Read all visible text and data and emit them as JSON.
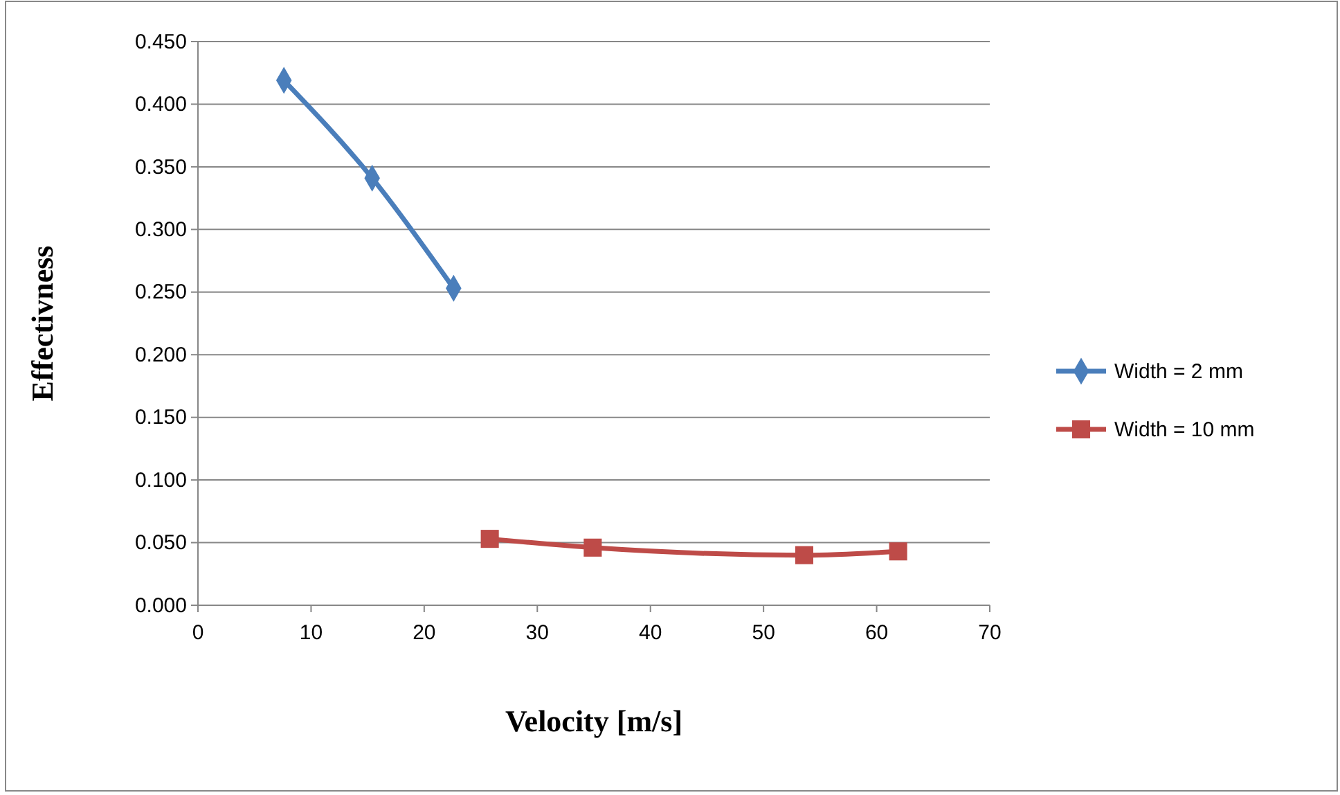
{
  "chart_data": {
    "type": "line",
    "xlabel": "Velocity [m/s]",
    "ylabel": "Effectivness",
    "xlim": [
      0,
      70
    ],
    "xticks": [
      0,
      10,
      20,
      30,
      40,
      50,
      60,
      70
    ],
    "ylim": [
      0,
      0.45
    ],
    "yticks": [
      {
        "value": 0,
        "label": "0.000"
      },
      {
        "value": 0.05,
        "label": "0.050"
      },
      {
        "value": 0.1,
        "label": "0.100"
      },
      {
        "value": 0.15,
        "label": "0.150"
      },
      {
        "value": 0.2,
        "label": "0.200"
      },
      {
        "value": 0.25,
        "label": "0.250"
      },
      {
        "value": 0.3,
        "label": "0.300"
      },
      {
        "value": 0.35,
        "label": "0.350"
      },
      {
        "value": 0.4,
        "label": "0.400"
      },
      {
        "value": 0.45,
        "label": "0.450"
      }
    ],
    "grid": "y",
    "legend": "right",
    "series": [
      {
        "name": "Width = 2 mm",
        "color": "#4a7ebb",
        "marker": "diamond",
        "x": [
          7.6,
          15.4,
          22.6
        ],
        "values": [
          0.419,
          0.341,
          0.253
        ]
      },
      {
        "name": "Width = 10 mm",
        "color": "#be4b48",
        "marker": "square",
        "x": [
          25.8,
          34.9,
          53.6,
          61.9
        ],
        "values": [
          0.053,
          0.046,
          0.04,
          0.043
        ]
      }
    ]
  }
}
